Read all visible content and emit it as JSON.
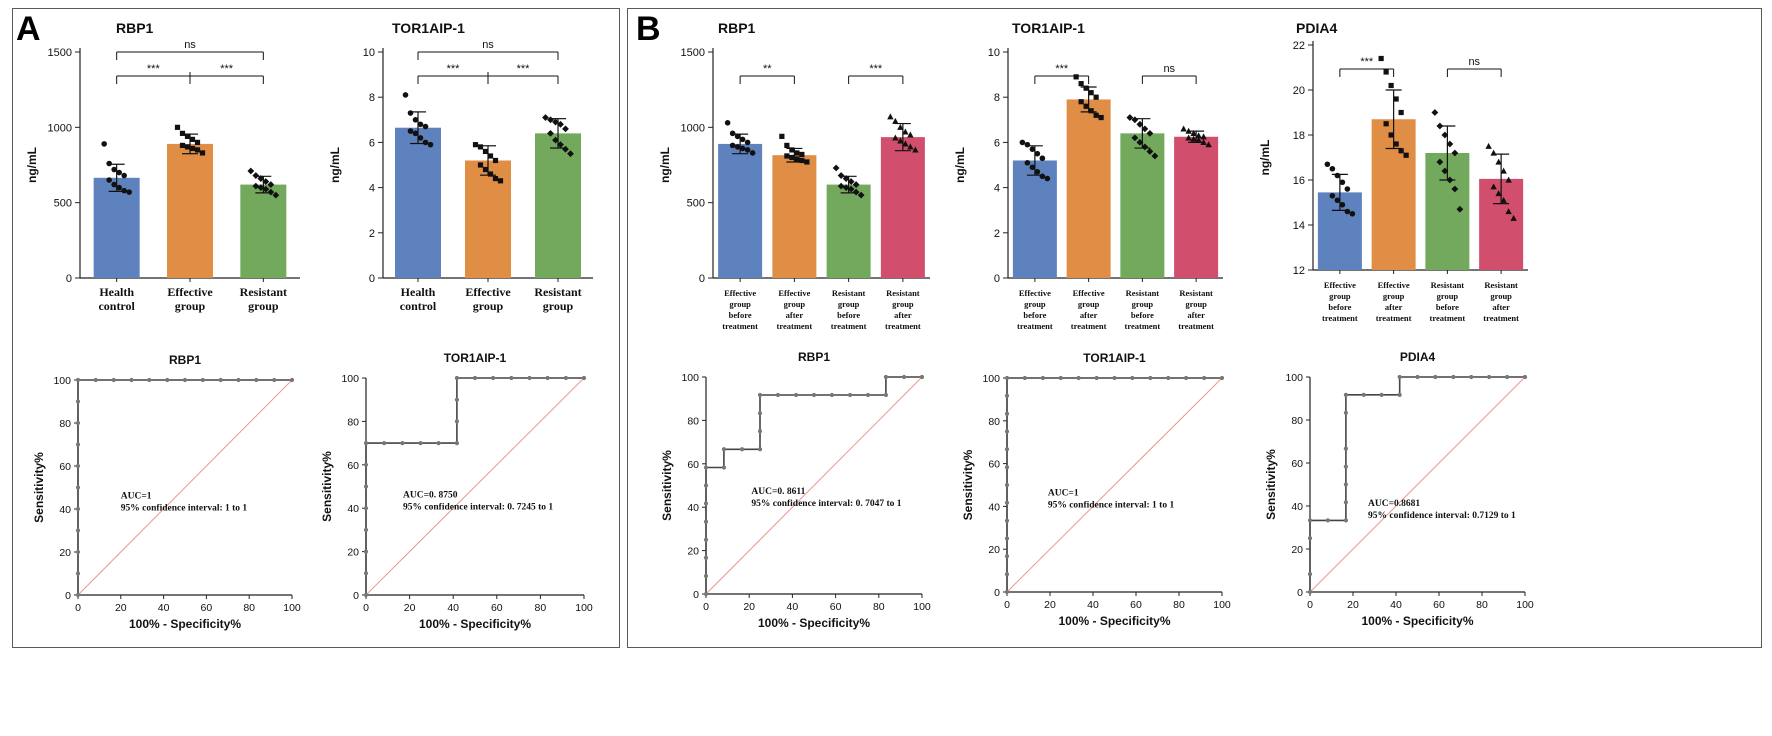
{
  "colors": {
    "blue": "#5e82bd",
    "orange": "#e08d45",
    "green": "#72a95d",
    "pink": "#d14f6c",
    "roc_line": "#444444",
    "diag": "#e8998a"
  },
  "panels": [
    {
      "letter": "A"
    },
    {
      "letter": "B"
    }
  ],
  "chart_data": [
    {
      "id": "A-bar-RBP1",
      "panel": "A",
      "type": "bar",
      "title": "RBP1",
      "ylabel": "ng/mL",
      "ylim": [
        0,
        1500
      ],
      "yticks": [
        "0",
        "500",
        "1000",
        "1500"
      ],
      "ytick_values": [
        0,
        500,
        1000,
        1500
      ],
      "categories": [
        [
          "Health",
          "control"
        ],
        [
          "Effective",
          "group"
        ],
        [
          "Resistant",
          "group"
        ]
      ],
      "values": [
        665,
        890,
        620
      ],
      "errors": [
        90,
        65,
        55
      ],
      "colors": [
        "blue",
        "orange",
        "green"
      ],
      "points": [
        [
          890,
          760,
          720,
          700,
          680,
          650,
          620,
          600,
          580,
          570
        ],
        [
          1000,
          960,
          940,
          920,
          900,
          880,
          870,
          860,
          850,
          830
        ],
        [
          710,
          680,
          660,
          640,
          620,
          610,
          600,
          590,
          570,
          550
        ]
      ],
      "significance": [
        {
          "from": 0,
          "to": 2,
          "label": "ns",
          "level": 1
        },
        {
          "from": 0,
          "to": 1,
          "label": "***",
          "level": 0
        },
        {
          "from": 1,
          "to": 2,
          "label": "***",
          "level": 0
        }
      ]
    },
    {
      "id": "A-bar-TOR1AIP1",
      "panel": "A",
      "type": "bar",
      "title": "TOR1AIP-1",
      "ylabel": "ng/mL",
      "ylim": [
        0,
        10
      ],
      "yticks": [
        "0",
        "2",
        "4",
        "6",
        "8",
        "10"
      ],
      "ytick_values": [
        0,
        2,
        4,
        6,
        8,
        10
      ],
      "categories": [
        [
          "Health",
          "control"
        ],
        [
          "Effective",
          "group"
        ],
        [
          "Resistant",
          "group"
        ]
      ],
      "values": [
        6.65,
        5.2,
        6.4
      ],
      "errors": [
        0.7,
        0.65,
        0.65
      ],
      "colors": [
        "blue",
        "orange",
        "green"
      ],
      "points": [
        [
          8.1,
          7.3,
          7.0,
          6.8,
          6.7,
          6.5,
          6.4,
          6.2,
          6.0,
          5.9
        ],
        [
          5.9,
          5.8,
          5.6,
          5.4,
          5.2,
          5.0,
          4.8,
          4.6,
          4.4,
          4.3
        ],
        [
          7.1,
          7.0,
          6.9,
          6.8,
          6.6,
          6.4,
          6.1,
          5.9,
          5.7,
          5.5
        ]
      ],
      "significance": [
        {
          "from": 0,
          "to": 2,
          "label": "ns",
          "level": 1
        },
        {
          "from": 0,
          "to": 1,
          "label": "***",
          "level": 0
        },
        {
          "from": 1,
          "to": 2,
          "label": "***",
          "level": 0
        }
      ]
    },
    {
      "id": "B-bar-RBP1",
      "panel": "B",
      "type": "bar",
      "title": "RBP1",
      "ylabel": "ng/mL",
      "ylim": [
        0,
        1500
      ],
      "yticks": [
        "0",
        "500",
        "1000",
        "1500"
      ],
      "ytick_values": [
        0,
        500,
        1000,
        1500
      ],
      "categories": [
        [
          "Effective",
          "group",
          "before",
          "treatment"
        ],
        [
          "Effective",
          "group",
          "after",
          "treatment"
        ],
        [
          "Resistant",
          "group",
          "before",
          "treatment"
        ],
        [
          "Resistant",
          "group",
          "after",
          "treatment"
        ]
      ],
      "values": [
        890,
        815,
        620,
        935
      ],
      "errors": [
        65,
        45,
        55,
        90
      ],
      "colors": [
        "blue",
        "orange",
        "green",
        "pink"
      ],
      "points": [
        [
          1030,
          960,
          940,
          920,
          900,
          880,
          870,
          860,
          850,
          830
        ],
        [
          940,
          880,
          850,
          830,
          820,
          810,
          800,
          790,
          780,
          770
        ],
        [
          730,
          680,
          660,
          640,
          620,
          610,
          600,
          590,
          570,
          550
        ],
        [
          1070,
          1040,
          1000,
          970,
          950,
          930,
          910,
          890,
          870,
          850
        ]
      ],
      "significance": [
        {
          "from": 0,
          "to": 1,
          "label": "**",
          "level": 0
        },
        {
          "from": 2,
          "to": 3,
          "label": "***",
          "level": 0
        }
      ]
    },
    {
      "id": "B-bar-TOR1AIP1",
      "panel": "B",
      "type": "bar",
      "title": "TOR1AIP-1",
      "ylabel": "ng/mL",
      "ylim": [
        0,
        10
      ],
      "yticks": [
        "0",
        "2",
        "4",
        "6",
        "8",
        "10"
      ],
      "ytick_values": [
        0,
        2,
        4,
        6,
        8,
        10
      ],
      "categories": [
        [
          "Effective",
          "group",
          "before",
          "treatment"
        ],
        [
          "Effective",
          "group",
          "after",
          "treatment"
        ],
        [
          "Resistant",
          "group",
          "before",
          "treatment"
        ],
        [
          "Resistant",
          "group",
          "after",
          "treatment"
        ]
      ],
      "values": [
        5.2,
        7.9,
        6.4,
        6.25
      ],
      "errors": [
        0.65,
        0.55,
        0.65,
        0.25
      ],
      "colors": [
        "blue",
        "orange",
        "green",
        "pink"
      ],
      "points": [
        [
          6.0,
          5.9,
          5.7,
          5.5,
          5.3,
          5.1,
          4.9,
          4.7,
          4.5,
          4.4
        ],
        [
          8.9,
          8.6,
          8.4,
          8.2,
          8.0,
          7.8,
          7.6,
          7.4,
          7.2,
          7.1
        ],
        [
          7.1,
          7.0,
          6.8,
          6.6,
          6.4,
          6.2,
          6.0,
          5.8,
          5.6,
          5.4
        ],
        [
          6.6,
          6.5,
          6.4,
          6.3,
          6.25,
          6.2,
          6.15,
          6.1,
          6.0,
          5.9
        ]
      ],
      "significance": [
        {
          "from": 0,
          "to": 1,
          "label": "***",
          "level": 0
        },
        {
          "from": 2,
          "to": 3,
          "label": "ns",
          "level": 0
        }
      ]
    },
    {
      "id": "B-bar-PDIA4",
      "panel": "B",
      "type": "bar",
      "title": "PDIA4",
      "ylabel": "ng/mL",
      "ylim": [
        12,
        22
      ],
      "yticks": [
        "12",
        "14",
        "16",
        "18",
        "20",
        "22"
      ],
      "ytick_values": [
        12,
        14,
        16,
        18,
        20,
        22
      ],
      "categories": [
        [
          "Effective",
          "group",
          "before",
          "treatment"
        ],
        [
          "Effective",
          "group",
          "after",
          "treatment"
        ],
        [
          "Resistant",
          "group",
          "before",
          "treatment"
        ],
        [
          "Resistant",
          "group",
          "after",
          "treatment"
        ]
      ],
      "values": [
        15.45,
        18.7,
        17.2,
        16.05
      ],
      "errors": [
        0.8,
        1.3,
        1.2,
        1.1
      ],
      "colors": [
        "blue",
        "orange",
        "green",
        "pink"
      ],
      "points": [
        [
          16.7,
          16.5,
          16.2,
          15.9,
          15.6,
          15.3,
          15.1,
          14.9,
          14.6,
          14.5
        ],
        [
          21.4,
          20.8,
          20.2,
          19.6,
          19.0,
          18.5,
          18.0,
          17.6,
          17.3,
          17.1
        ],
        [
          19.0,
          18.4,
          18.0,
          17.6,
          17.2,
          16.8,
          16.4,
          16.0,
          15.6,
          14.7
        ],
        [
          17.5,
          17.2,
          16.8,
          16.4,
          16.0,
          15.7,
          15.4,
          15.1,
          14.6,
          14.3
        ]
      ],
      "significance": [
        {
          "from": 0,
          "to": 1,
          "label": "***",
          "level": 0
        },
        {
          "from": 2,
          "to": 3,
          "label": "ns",
          "level": 0
        }
      ]
    },
    {
      "id": "A-roc-RBP1",
      "panel": "A",
      "type": "line",
      "title": "RBP1",
      "xlabel": "100% - Specificity%",
      "ylabel": "Sensitivity%",
      "xlim": [
        0,
        100
      ],
      "ylim": [
        0,
        100
      ],
      "xticks": [
        "0",
        "20",
        "40",
        "60",
        "80",
        "100"
      ],
      "yticks": [
        "0",
        "20",
        "40",
        "60",
        "80",
        "100"
      ],
      "tick_values": [
        0,
        20,
        40,
        60,
        80,
        100
      ],
      "x": [
        0,
        0,
        0,
        0,
        0,
        0,
        0,
        0,
        0,
        0,
        0,
        8.3,
        16.7,
        25,
        33.3,
        41.7,
        50,
        58.3,
        66.7,
        75,
        83.3,
        91.7,
        100
      ],
      "y": [
        0,
        10,
        20,
        30,
        40,
        50,
        60,
        70,
        80,
        90,
        100,
        100,
        100,
        100,
        100,
        100,
        100,
        100,
        100,
        100,
        100,
        100,
        100
      ],
      "annotation": [
        "AUC=1",
        "95% confidence interval: 1 to 1"
      ],
      "annotation_pos": [
        20,
        45
      ]
    },
    {
      "id": "A-roc-TOR1AIP1",
      "panel": "A",
      "type": "line",
      "title": "TOR1AIP-1",
      "xlabel": "100% - Specificity%",
      "ylabel": "Sensitivity%",
      "xlim": [
        0,
        100
      ],
      "ylim": [
        0,
        100
      ],
      "xticks": [
        "0",
        "20",
        "40",
        "60",
        "80",
        "100"
      ],
      "yticks": [
        "0",
        "20",
        "40",
        "60",
        "80",
        "100"
      ],
      "tick_values": [
        0,
        20,
        40,
        60,
        80,
        100
      ],
      "x": [
        0,
        0,
        0,
        0,
        0,
        0,
        0,
        0,
        8.3,
        16.7,
        25,
        33.3,
        41.7,
        41.7,
        41.7,
        41.7,
        50,
        58.3,
        66.7,
        75,
        83.3,
        91.7,
        100
      ],
      "y": [
        0,
        10,
        20,
        30,
        40,
        50,
        60,
        70,
        70,
        70,
        70,
        70,
        70,
        80,
        90,
        100,
        100,
        100,
        100,
        100,
        100,
        100,
        100
      ],
      "annotation": [
        "AUC=0. 8750",
        "95% confidence interval: 0. 7245 to 1"
      ],
      "annotation_pos": [
        17,
        45
      ]
    },
    {
      "id": "B-roc-RBP1",
      "panel": "B",
      "type": "line",
      "title": "RBP1",
      "xlabel": "100% - Specificity%",
      "ylabel": "Sensitivity%",
      "xlim": [
        0,
        100
      ],
      "ylim": [
        0,
        100
      ],
      "xticks": [
        "0",
        "20",
        "40",
        "60",
        "80",
        "100"
      ],
      "yticks": [
        "0",
        "20",
        "40",
        "60",
        "80",
        "100"
      ],
      "tick_values": [
        0,
        20,
        40,
        60,
        80,
        100
      ],
      "x": [
        0,
        0,
        0,
        0,
        0,
        0,
        0,
        0,
        8.3,
        8.3,
        16.7,
        25,
        25,
        25,
        25,
        33.3,
        41.7,
        50,
        58.3,
        66.7,
        75,
        83.3,
        83.3,
        91.7,
        100
      ],
      "y": [
        0,
        8.3,
        16.7,
        25,
        33.3,
        41.7,
        50,
        58.3,
        58.3,
        66.7,
        66.7,
        66.7,
        75,
        83.3,
        91.7,
        91.7,
        91.7,
        91.7,
        91.7,
        91.7,
        91.7,
        91.7,
        100,
        100,
        100
      ],
      "annotation": [
        "AUC=0. 8611",
        "95% confidence interval: 0. 7047 to 1"
      ],
      "annotation_pos": [
        21,
        46
      ]
    },
    {
      "id": "B-roc-TOR1AIP1",
      "panel": "B",
      "type": "line",
      "title": "TOR1AIP-1",
      "xlabel": "100% - Specificity%",
      "ylabel": "Sensitivity%",
      "xlim": [
        0,
        100
      ],
      "ylim": [
        0,
        100
      ],
      "xticks": [
        "0",
        "20",
        "40",
        "60",
        "80",
        "100"
      ],
      "yticks": [
        "0",
        "20",
        "40",
        "60",
        "80",
        "100"
      ],
      "tick_values": [
        0,
        20,
        40,
        60,
        80,
        100
      ],
      "x": [
        0,
        0,
        0,
        0,
        0,
        0,
        0,
        0,
        0,
        0,
        0,
        0,
        0,
        8.3,
        16.7,
        25,
        33.3,
        41.7,
        50,
        58.3,
        66.7,
        75,
        83.3,
        91.7,
        100
      ],
      "y": [
        0,
        8.3,
        16.7,
        25,
        33.3,
        41.7,
        50,
        58.3,
        66.7,
        75,
        83.3,
        91.7,
        100,
        100,
        100,
        100,
        100,
        100,
        100,
        100,
        100,
        100,
        100,
        100,
        100
      ],
      "annotation": [
        "AUC=1",
        "95% confidence interval: 1 to 1"
      ],
      "annotation_pos": [
        19,
        45
      ]
    },
    {
      "id": "B-roc-PDIA4",
      "panel": "B",
      "type": "line",
      "title": "PDIA4",
      "xlabel": "100% - Specificity%",
      "ylabel": "Sensitivity%",
      "xlim": [
        0,
        100
      ],
      "ylim": [
        0,
        100
      ],
      "xticks": [
        "0",
        "20",
        "40",
        "60",
        "80",
        "100"
      ],
      "yticks": [
        "0",
        "20",
        "40",
        "60",
        "80",
        "100"
      ],
      "tick_values": [
        0,
        20,
        40,
        60,
        80,
        100
      ],
      "x": [
        0,
        0,
        0,
        0,
        8.3,
        16.7,
        16.7,
        16.7,
        16.7,
        16.7,
        16.7,
        16.7,
        25,
        33.3,
        41.7,
        41.7,
        50,
        58.3,
        66.7,
        75,
        83.3,
        91.7,
        100
      ],
      "y": [
        0,
        8.3,
        25,
        33.3,
        33.3,
        33.3,
        41.7,
        50,
        58.3,
        66.7,
        83.3,
        91.7,
        91.7,
        91.7,
        91.7,
        100,
        100,
        100,
        100,
        100,
        100,
        100,
        100
      ],
      "annotation": [
        "AUC=0.8681",
        "95% confidence interval: 0.7129 to 1"
      ],
      "annotation_pos": [
        27,
        40
      ]
    }
  ]
}
